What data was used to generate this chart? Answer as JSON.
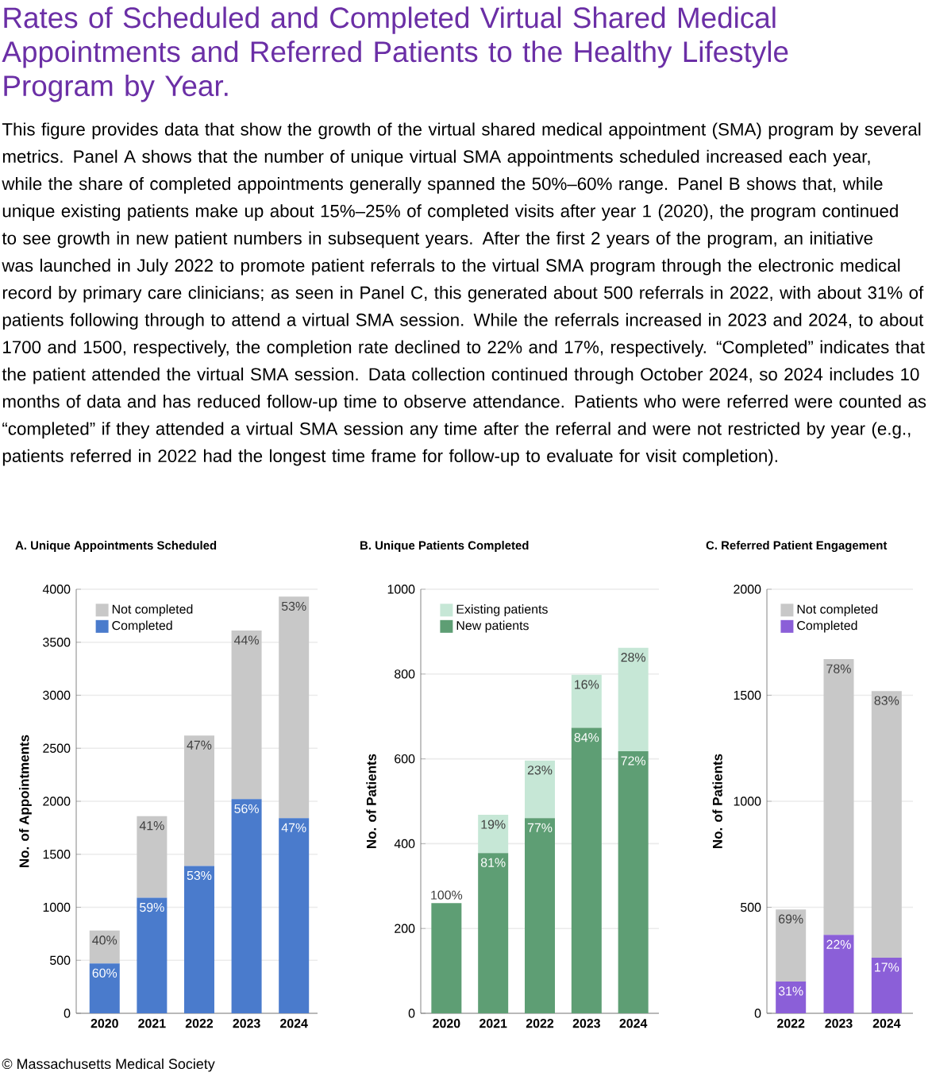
{
  "chart_data": [
    {
      "type": "bar",
      "title": "A. Unique Appointments Scheduled",
      "ylabel": "No. of Appointments",
      "categories": [
        "2020",
        "2021",
        "2022",
        "2023",
        "2024"
      ],
      "stacked": true,
      "ylim": [
        0,
        4000
      ],
      "yticks": [
        0,
        500,
        1000,
        1500,
        2000,
        2500,
        3000,
        3500,
        4000
      ],
      "grid": "y",
      "legend": "top left",
      "series": [
        {
          "name": "Completed",
          "color": "#4a7bcc",
          "values": [
            470,
            1090,
            1390,
            2020,
            1840
          ]
        },
        {
          "name": "Not completed",
          "color": "#c8c8c8",
          "values": [
            310,
            770,
            1230,
            1590,
            2090
          ]
        }
      ],
      "annotations": [
        "Rates of Scheduled and Completed Virtual Shared Medical Appointments and Referred Patients to the Healthy Lifestyle Program by Year.",
        "This figure provides data that show the growth of the virtual shared medical appointment (SMA) program by several metrics. Panel A shows that the number of unique virtual SMA appointments scheduled increased each year, while the share of completed appointments generally spanned the 50%–60% range. Panel B shows that, while unique existing patients make up about 15%–25% of completed visits after year 1 (2020), the program continued to see growth in new patient numbers in subsequent years. After the first 2 years of the program, an initiative was launched in July 2022 to promote patient referrals to the virtual SMA program through the electronic medical record by primary care clinicians; as seen in Panel C, this generated about 500 referrals in 2022, with about 31% of patients following through to attend a virtual SMA session. While the referrals increased in 2023 and 2024, to about 1700 and 1500, respectively, the completion rate declined to 22% and 17%, respectively. “Completed” indicates that the patient attended the virtual SMA session. Data collection continued through October 2024, so 2024 includes 10 months of data and has reduced follow-up time to observe attendance. Patients who were referred were counted as “completed” if they attended a virtual SMA session any time after the referral and were not restricted by year (e.g., patients referred in 2022 had the longest time frame for follow-up to evaluate for visit completion).",
        {
          "text": "60%",
          "x": "2020",
          "y": 470
        },
        {
          "text": "59%",
          "x": "2021",
          "y": 1090
        },
        {
          "text": "53%",
          "x": "2022",
          "y": 1390
        },
        {
          "text": "56%",
          "x": "2023",
          "y": 2020
        },
        {
          "text": "47%",
          "x": "2024",
          "y": 1840
        },
        {
          "text": "40%",
          "x": "2020",
          "y": 780
        },
        {
          "text": "41%",
          "x": "2021",
          "y": 1860
        },
        {
          "text": "47%",
          "x": "2022",
          "y": 2620
        },
        {
          "text": "44%",
          "x": "2023",
          "y": 3610
        },
        {
          "text": "53%",
          "x": "2024",
          "y": 3930
        }
      ]
    },
    {
      "type": "bar",
      "title": "B. Unique Patients Completed",
      "ylabel": "No. of Patients",
      "categories": [
        "2020",
        "2021",
        "2022",
        "2023",
        "2024"
      ],
      "stacked": true,
      "ylim": [
        0,
        1000
      ],
      "yticks": [
        0,
        200,
        400,
        600,
        800,
        1000
      ],
      "grid": "y",
      "legend": "top left",
      "series": [
        {
          "name": "New patients",
          "color": "#5e9e74",
          "values": [
            260,
            378,
            460,
            673,
            618
          ]
        },
        {
          "name": "Existing patients",
          "color": "#c6e7d6",
          "values": [
            0,
            90,
            136,
            125,
            244
          ]
        }
      ],
      "annotations": [
        {
          "text": "100%",
          "x": "2020",
          "y": 260
        },
        {
          "text": "81%",
          "x": "2021",
          "y": 378
        },
        {
          "text": "77%",
          "x": "2022",
          "y": 460
        },
        {
          "text": "84%",
          "x": "2023",
          "y": 673
        },
        {
          "text": "72%",
          "x": "2024",
          "y": 618
        },
        {
          "text": "19%",
          "x": "2021",
          "y": 468
        },
        {
          "text": "23%",
          "x": "2022",
          "y": 596
        },
        {
          "text": "16%",
          "x": "2023",
          "y": 798
        },
        {
          "text": "28%",
          "x": "2024",
          "y": 862
        }
      ]
    },
    {
      "type": "bar",
      "title": "C. Referred Patient Engagement",
      "ylabel": "No. of Patients",
      "categories": [
        "2022",
        "2023",
        "2024"
      ],
      "stacked": true,
      "ylim": [
        0,
        2000
      ],
      "yticks": [
        0,
        500,
        1000,
        1500,
        2000
      ],
      "grid": "y",
      "legend": "top left",
      "series": [
        {
          "name": "Completed",
          "color": "#8b5fd8",
          "values": [
            150,
            370,
            262
          ]
        },
        {
          "name": "Not completed",
          "color": "#c8c8c8",
          "values": [
            340,
            1300,
            1258
          ]
        }
      ],
      "annotations": [
        {
          "text": "31%",
          "x": "2022",
          "y": 150
        },
        {
          "text": "22%",
          "x": "2023",
          "y": 370
        },
        {
          "text": "17%",
          "x": "2024",
          "y": 262
        },
        {
          "text": "69%",
          "x": "2022",
          "y": 490
        },
        {
          "text": "78%",
          "x": "2023",
          "y": 1670
        },
        {
          "text": "83%",
          "x": "2024",
          "y": 1520
        },
        "© Massachusetts Medical Society"
      ]
    }
  ]
}
